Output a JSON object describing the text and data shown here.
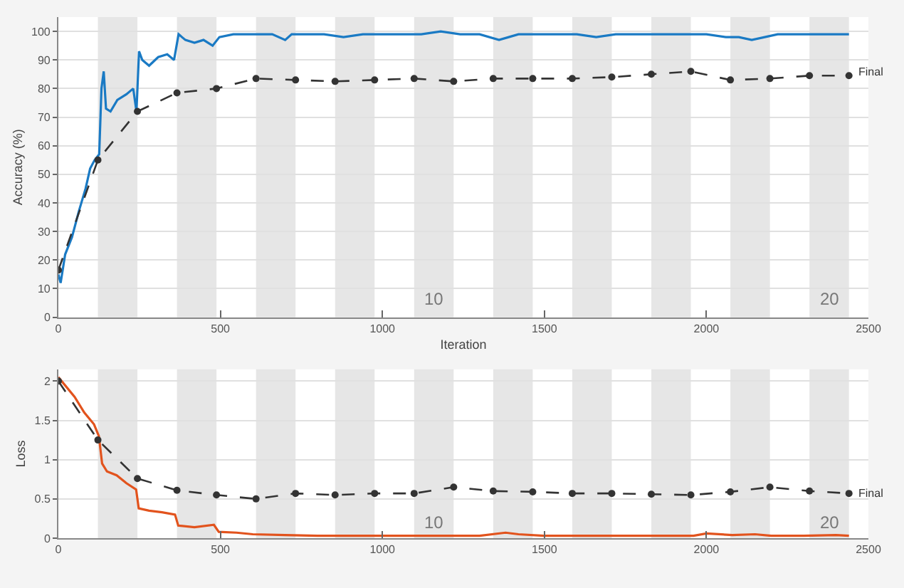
{
  "chart_data": [
    {
      "type": "line",
      "xlabel": "Iteration",
      "ylabel": "Accuracy (%)",
      "xlim": [
        0,
        2500
      ],
      "xticks": [
        0,
        500,
        1000,
        1500,
        2000,
        2500
      ],
      "ylim": [
        0,
        105
      ],
      "yticks": [
        0,
        10,
        20,
        30,
        40,
        50,
        60,
        70,
        80,
        90,
        100
      ],
      "grid": "y",
      "series": [
        {
          "color": "#1a7ac4",
          "marker": "none",
          "line_style": "solid",
          "x": [
            0,
            7,
            21,
            42,
            63,
            84,
            98,
            112,
            126,
            133,
            140,
            147,
            161,
            182,
            210,
            231,
            241,
            249,
            259,
            280,
            308,
            336,
            357,
            371,
            392,
            420,
            448,
            476,
            497,
            540,
            600,
            660,
            700,
            720,
            760,
            820,
            880,
            940,
            1000,
            1060,
            1120,
            1180,
            1240,
            1300,
            1360,
            1390,
            1420,
            1480,
            1540,
            1600,
            1660,
            1720,
            1780,
            1840,
            1900,
            1960,
            2000,
            2060,
            2100,
            2140,
            2180,
            2220,
            2260,
            2300,
            2340,
            2380,
            2440
          ],
          "values": [
            15,
            12,
            22,
            28,
            37,
            45,
            52,
            55,
            57,
            80,
            86,
            73,
            72,
            76,
            78,
            80,
            72,
            93,
            90,
            88,
            91,
            92,
            90,
            99,
            97,
            96,
            97,
            95,
            98,
            99,
            99,
            99,
            97,
            99,
            99,
            99,
            98,
            99,
            99,
            99,
            99,
            100,
            99,
            99,
            97,
            98,
            99,
            99,
            99,
            99,
            98,
            99,
            99,
            99,
            99,
            99,
            99,
            98,
            98,
            97,
            98,
            99,
            99,
            99,
            99,
            99,
            99
          ]
        },
        {
          "color": "#333333",
          "marker": "circle",
          "line_style": "dashed",
          "x": [
            0,
            122,
            244,
            366,
            488,
            610,
            732,
            854,
            976,
            1098,
            1220,
            1342,
            1464,
            1586,
            1708,
            1830,
            1952,
            2074,
            2196,
            2318,
            2440
          ],
          "values": [
            16.5,
            55,
            72,
            78.5,
            80,
            83.5,
            83,
            82.5,
            83,
            83.5,
            82.5,
            83.5,
            83.5,
            83.5,
            84,
            85,
            86,
            83,
            83.5,
            84.5,
            84.5
          ]
        }
      ],
      "bands": [
        {
          "axis": "x",
          "from": 122,
          "to": 244,
          "color": "#e6e6e6"
        },
        {
          "axis": "x",
          "from": 366,
          "to": 488,
          "color": "#e6e6e6"
        },
        {
          "axis": "x",
          "from": 610,
          "to": 732,
          "color": "#e6e6e6"
        },
        {
          "axis": "x",
          "from": 854,
          "to": 976,
          "color": "#e6e6e6"
        },
        {
          "axis": "x",
          "from": 1098,
          "to": 1220,
          "color": "#e6e6e6"
        },
        {
          "axis": "x",
          "from": 1342,
          "to": 1464,
          "color": "#e6e6e6"
        },
        {
          "axis": "x",
          "from": 1586,
          "to": 1708,
          "color": "#e6e6e6"
        },
        {
          "axis": "x",
          "from": 1830,
          "to": 1952,
          "color": "#e6e6e6"
        },
        {
          "axis": "x",
          "from": 2074,
          "to": 2196,
          "color": "#e6e6e6"
        },
        {
          "axis": "x",
          "from": 2318,
          "to": 2440,
          "color": "#e6e6e6"
        }
      ],
      "annotations": [
        {
          "text": "Final",
          "x": 2440,
          "y": 86
        },
        "10",
        "20"
      ]
    },
    {
      "type": "line",
      "ylabel": "Loss",
      "xlim": [
        0,
        2500
      ],
      "xticks": [
        0,
        500,
        1000,
        1500,
        2000,
        2500
      ],
      "ylim": [
        0,
        2.15
      ],
      "yticks": [
        0,
        0.5,
        1,
        1.5,
        2
      ],
      "grid": "y",
      "series": [
        {
          "color": "#e2531d",
          "marker": "none",
          "line_style": "solid",
          "x": [
            0,
            20,
            50,
            80,
            110,
            125,
            135,
            150,
            180,
            210,
            240,
            248,
            280,
            320,
            360,
            370,
            420,
            480,
            495,
            550,
            600,
            700,
            800,
            900,
            1000,
            1100,
            1200,
            1300,
            1380,
            1420,
            1500,
            1600,
            1700,
            1800,
            1900,
            1960,
            2000,
            2080,
            2150,
            2200,
            2300,
            2400,
            2440
          ],
          "values": [
            2.05,
            1.95,
            1.8,
            1.6,
            1.45,
            1.3,
            0.95,
            0.85,
            0.8,
            0.7,
            0.62,
            0.38,
            0.35,
            0.33,
            0.3,
            0.16,
            0.14,
            0.17,
            0.08,
            0.07,
            0.05,
            0.04,
            0.03,
            0.03,
            0.03,
            0.03,
            0.03,
            0.03,
            0.07,
            0.05,
            0.03,
            0.03,
            0.03,
            0.03,
            0.03,
            0.03,
            0.06,
            0.04,
            0.05,
            0.03,
            0.03,
            0.04,
            0.03
          ]
        },
        {
          "color": "#333333",
          "marker": "circle",
          "line_style": "dashed",
          "x": [
            0,
            122,
            244,
            366,
            488,
            610,
            732,
            854,
            976,
            1098,
            1220,
            1342,
            1464,
            1586,
            1708,
            1830,
            1952,
            2074,
            2196,
            2318,
            2440
          ],
          "values": [
            2.0,
            1.25,
            0.76,
            0.61,
            0.55,
            0.5,
            0.57,
            0.55,
            0.57,
            0.57,
            0.65,
            0.6,
            0.59,
            0.57,
            0.57,
            0.56,
            0.55,
            0.59,
            0.65,
            0.6,
            0.57
          ]
        }
      ],
      "bands": [
        {
          "axis": "x",
          "from": 122,
          "to": 244,
          "color": "#e6e6e6"
        },
        {
          "axis": "x",
          "from": 366,
          "to": 488,
          "color": "#e6e6e6"
        },
        {
          "axis": "x",
          "from": 610,
          "to": 732,
          "color": "#e6e6e6"
        },
        {
          "axis": "x",
          "from": 854,
          "to": 976,
          "color": "#e6e6e6"
        },
        {
          "axis": "x",
          "from": 1098,
          "to": 1220,
          "color": "#e6e6e6"
        },
        {
          "axis": "x",
          "from": 1342,
          "to": 1464,
          "color": "#e6e6e6"
        },
        {
          "axis": "x",
          "from": 1586,
          "to": 1708,
          "color": "#e6e6e6"
        },
        {
          "axis": "x",
          "from": 1830,
          "to": 1952,
          "color": "#e6e6e6"
        },
        {
          "axis": "x",
          "from": 2074,
          "to": 2196,
          "color": "#e6e6e6"
        },
        {
          "axis": "x",
          "from": 2318,
          "to": 2440,
          "color": "#e6e6e6"
        }
      ],
      "annotations": [
        {
          "text": "Final",
          "x": 2440,
          "y": 0.57
        },
        "10",
        "20"
      ]
    }
  ]
}
